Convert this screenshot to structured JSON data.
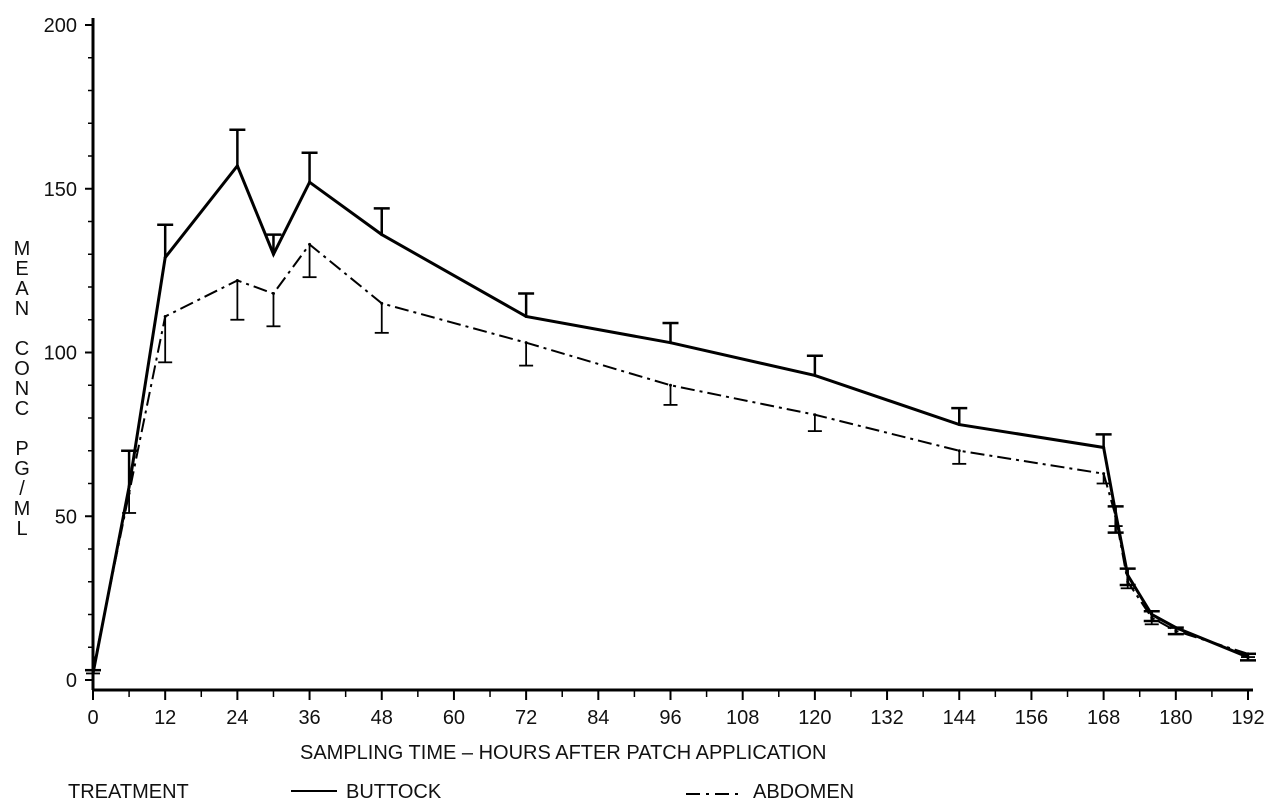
{
  "chart_data": {
    "type": "line",
    "xlabel": "SAMPLING TIME – HOURS AFTER PATCH APPLICATION",
    "ylabel": "MEAN CONC PG/ML",
    "ylabel_letters": [
      "M",
      "E",
      "A",
      "N",
      "",
      "C",
      "O",
      "N",
      "C",
      "",
      "P",
      "G",
      "/",
      "M",
      "L"
    ],
    "xlim": [
      0,
      192
    ],
    "ylim": [
      0,
      200
    ],
    "x_ticks": [
      0,
      12,
      24,
      36,
      48,
      60,
      72,
      84,
      96,
      108,
      120,
      132,
      144,
      156,
      168,
      180,
      192
    ],
    "y_ticks": [
      0,
      50,
      100,
      150,
      200
    ],
    "grid": false,
    "legend": {
      "title": "TREATMENT",
      "placement": "bottom",
      "entries": [
        "BUTTOCK",
        "ABDOMEN"
      ]
    },
    "series": [
      {
        "name": "BUTTOCK",
        "style": "solid",
        "x": [
          0,
          6,
          12,
          24,
          30,
          36,
          48,
          72,
          96,
          120,
          144,
          168,
          170,
          172,
          176,
          180,
          192
        ],
        "y": [
          2,
          59,
          129,
          157,
          130,
          152,
          136,
          111,
          103,
          93,
          78,
          71,
          51,
          32,
          20,
          16,
          7
        ],
        "err_hi": [
          3,
          70,
          139,
          168,
          136,
          161,
          144,
          118,
          109,
          99,
          83,
          75,
          53,
          34,
          21,
          16,
          8
        ],
        "err_lo": [
          null,
          null,
          null,
          null,
          null,
          null,
          null,
          null,
          null,
          null,
          null,
          null,
          45,
          29,
          18,
          14,
          6
        ]
      },
      {
        "name": "ABDOMEN",
        "style": "dashdot",
        "x": [
          0,
          6,
          12,
          24,
          30,
          36,
          48,
          72,
          96,
          120,
          144,
          168,
          170,
          172,
          176,
          180,
          192
        ],
        "y": [
          3,
          57,
          111,
          122,
          118,
          133,
          115,
          103,
          90,
          81,
          70,
          63,
          50,
          30,
          19,
          15,
          8
        ],
        "err_hi": [
          null,
          null,
          null,
          null,
          null,
          null,
          null,
          null,
          null,
          null,
          null,
          null,
          null,
          null,
          null,
          null,
          null
        ],
        "err_lo": [
          2,
          51,
          97,
          110,
          108,
          123,
          106,
          96,
          84,
          76,
          66,
          60,
          47,
          28,
          17,
          14,
          7
        ]
      }
    ]
  }
}
